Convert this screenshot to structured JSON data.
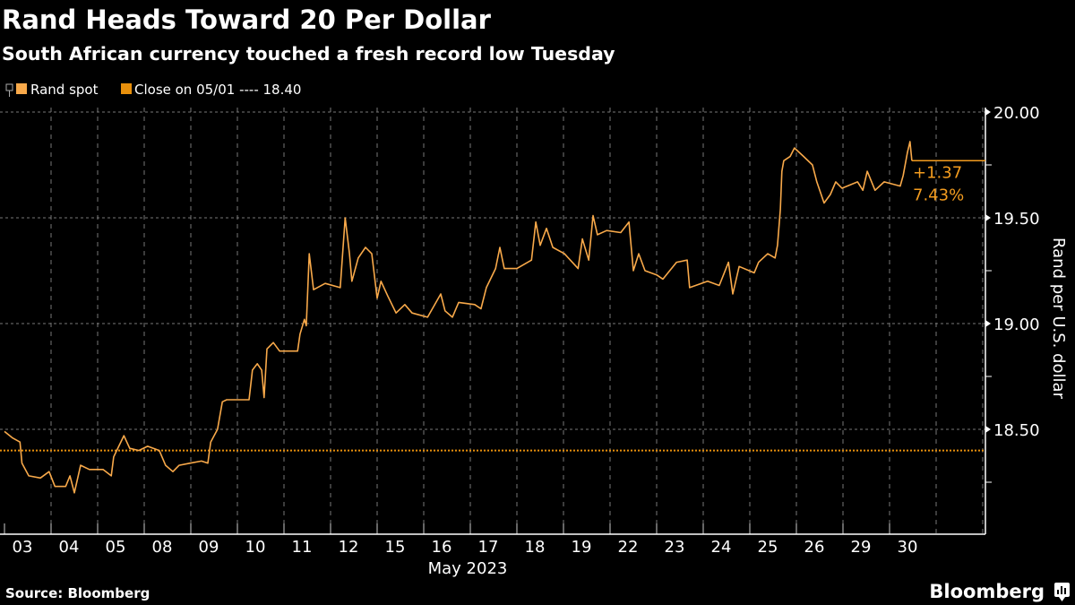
{
  "chart_data": {
    "type": "line",
    "title": "Rand Heads Toward 20 Per Dollar",
    "subtitle": "South African currency touched a fresh record low Tuesday",
    "xlabel": "May 2023",
    "ylabel": "Rand per U.S. dollar",
    "categories": [
      "03",
      "04",
      "05",
      "08",
      "09",
      "10",
      "11",
      "12",
      "15",
      "16",
      "17",
      "18",
      "19",
      "22",
      "23",
      "24",
      "25",
      "26",
      "29",
      "30"
    ],
    "ylim": [
      18.0,
      20.02
    ],
    "yticks": [
      "20.00",
      "19.50",
      "19.00",
      "18.50"
    ],
    "grid": true,
    "y_axis_side": "right",
    "legend_position": "top-left",
    "legend": [
      "Rand spot",
      "Close on 05/01 ---- 18.40"
    ],
    "reference_line": {
      "name": "Close on 05/01",
      "value": 18.4,
      "color": "#e8900c"
    },
    "annotation": {
      "change": "+1.37",
      "percent": "7.43%",
      "last_value": 19.77
    },
    "series": [
      {
        "name": "Rand spot",
        "color": "#f8a94a",
        "points": [
          [
            "05/03 00:00",
            18.49
          ],
          [
            "05/03 04:00",
            18.46
          ],
          [
            "05/03 08:00",
            18.44
          ],
          [
            "05/03 09:00",
            18.34
          ],
          [
            "05/03 12:30",
            18.28
          ],
          [
            "05/03 18:30",
            18.27
          ],
          [
            "05/03 23:00",
            18.3
          ],
          [
            "05/04 02:00",
            18.23
          ],
          [
            "05/04 07:30",
            18.23
          ],
          [
            "05/04 09:45",
            18.28
          ],
          [
            "05/04 12:00",
            18.2
          ],
          [
            "05/04 15:15",
            18.33
          ],
          [
            "05/04 19:45",
            18.31
          ],
          [
            "05/05 02:45",
            18.31
          ],
          [
            "05/05 07:00",
            18.28
          ],
          [
            "05/05 08:15",
            18.37
          ],
          [
            "05/05 13:30",
            18.47
          ],
          [
            "05/05 16:30",
            18.41
          ],
          [
            "05/05 21:15",
            18.4
          ],
          [
            "05/08 01:45",
            18.42
          ],
          [
            "05/08 07:45",
            18.4
          ],
          [
            "05/08 11:00",
            18.33
          ],
          [
            "05/08 14:45",
            18.3
          ],
          [
            "05/08 18:00",
            18.33
          ],
          [
            "05/08 23:30",
            18.34
          ],
          [
            "05/09 05:30",
            18.35
          ],
          [
            "05/09 08:45",
            18.34
          ],
          [
            "05/09 10:15",
            18.44
          ],
          [
            "05/09 13:45",
            18.5
          ],
          [
            "05/09 16:15",
            18.63
          ],
          [
            "05/09 18:30",
            18.64
          ],
          [
            "05/10 00:00",
            18.64
          ],
          [
            "05/10 06:00",
            18.64
          ],
          [
            "05/10 07:45",
            18.78
          ],
          [
            "05/10 10:15",
            18.81
          ],
          [
            "05/10 12:30",
            18.78
          ],
          [
            "05/10 13:45",
            18.65
          ],
          [
            "05/10 15:15",
            18.88
          ],
          [
            "05/10 18:30",
            18.91
          ],
          [
            "05/10 21:45",
            18.87
          ],
          [
            "05/11 03:45",
            18.87
          ],
          [
            "05/11 07:00",
            18.87
          ],
          [
            "05/11 08:15",
            18.95
          ],
          [
            "05/11 10:30",
            19.02
          ],
          [
            "05/11 11:30",
            18.99
          ],
          [
            "05/11 13:00",
            19.33
          ],
          [
            "05/11 15:15",
            19.16
          ],
          [
            "05/11 21:15",
            19.19
          ],
          [
            "05/12 05:00",
            19.17
          ],
          [
            "05/12 07:30",
            19.5
          ],
          [
            "05/12 09:45",
            19.33
          ],
          [
            "05/12 11:00",
            19.2
          ],
          [
            "05/12 14:15",
            19.31
          ],
          [
            "05/12 18:00",
            19.36
          ],
          [
            "05/12 21:15",
            19.33
          ],
          [
            "05/15 00:00",
            19.12
          ],
          [
            "05/15 02:00",
            19.2
          ],
          [
            "05/15 05:30",
            19.13
          ],
          [
            "05/15 09:45",
            19.05
          ],
          [
            "05/15 14:15",
            19.09
          ],
          [
            "05/15 18:00",
            19.05
          ],
          [
            "05/16 02:00",
            19.03
          ],
          [
            "05/16 08:45",
            19.14
          ],
          [
            "05/16 11:00",
            19.06
          ],
          [
            "05/16 14:45",
            19.03
          ],
          [
            "05/16 18:00",
            19.1
          ],
          [
            "05/17 02:15",
            19.09
          ],
          [
            "05/17 05:30",
            19.07
          ],
          [
            "05/17 08:15",
            19.17
          ],
          [
            "05/17 13:00",
            19.26
          ],
          [
            "05/17 15:15",
            19.36
          ],
          [
            "05/17 17:30",
            19.26
          ],
          [
            "05/18 00:00",
            19.26
          ],
          [
            "05/18 07:30",
            19.3
          ],
          [
            "05/18 09:45",
            19.48
          ],
          [
            "05/18 12:00",
            19.37
          ],
          [
            "05/18 15:15",
            19.45
          ],
          [
            "05/18 18:30",
            19.36
          ],
          [
            "05/19 00:30",
            19.33
          ],
          [
            "05/19 07:30",
            19.26
          ],
          [
            "05/19 09:45",
            19.4
          ],
          [
            "05/19 13:00",
            19.3
          ],
          [
            "05/19 15:15",
            19.51
          ],
          [
            "05/19 17:30",
            19.42
          ],
          [
            "05/19 22:15",
            19.44
          ],
          [
            "05/22 05:30",
            19.43
          ],
          [
            "05/22 09:45",
            19.48
          ],
          [
            "05/22 12:00",
            19.25
          ],
          [
            "05/22 14:45",
            19.33
          ],
          [
            "05/22 18:00",
            19.25
          ],
          [
            "05/23 00:00",
            19.23
          ],
          [
            "05/23 03:15",
            19.21
          ],
          [
            "05/23 10:15",
            19.29
          ],
          [
            "05/23 15:45",
            19.3
          ],
          [
            "05/23 17:00",
            19.17
          ],
          [
            "05/24 02:15",
            19.2
          ],
          [
            "05/24 08:15",
            19.18
          ],
          [
            "05/24 13:00",
            19.29
          ],
          [
            "05/24 15:15",
            19.14
          ],
          [
            "05/24 18:30",
            19.27
          ],
          [
            "05/25 02:15",
            19.24
          ],
          [
            "05/25 04:30",
            19.29
          ],
          [
            "05/25 09:15",
            19.33
          ],
          [
            "05/25 13:00",
            19.31
          ],
          [
            "05/25 14:15",
            19.37
          ],
          [
            "05/25 15:45",
            19.54
          ],
          [
            "05/25 16:30",
            19.72
          ],
          [
            "05/25 17:30",
            19.77
          ],
          [
            "05/25 20:45",
            19.79
          ],
          [
            "05/25 23:00",
            19.83
          ],
          [
            "05/26 03:45",
            19.79
          ],
          [
            "05/26 08:15",
            19.75
          ],
          [
            "05/26 10:30",
            19.67
          ],
          [
            "05/26 14:15",
            19.57
          ],
          [
            "05/26 17:30",
            19.61
          ],
          [
            "05/26 20:15",
            19.67
          ],
          [
            "05/26 23:30",
            19.64
          ],
          [
            "05/29 07:30",
            19.67
          ],
          [
            "05/29 10:15",
            19.63
          ],
          [
            "05/29 12:30",
            19.72
          ],
          [
            "05/29 16:30",
            19.63
          ],
          [
            "05/29 21:15",
            19.67
          ],
          [
            "05/30 05:30",
            19.65
          ],
          [
            "05/30 07:00",
            19.7
          ],
          [
            "05/30 09:15",
            19.81
          ],
          [
            "05/30 10:30",
            19.86
          ],
          [
            "05/30 11:30",
            19.77
          ]
        ]
      }
    ]
  },
  "source": "Source: Bloomberg",
  "brand": "Bloomberg",
  "icon": "bloomberg-chart-icon"
}
